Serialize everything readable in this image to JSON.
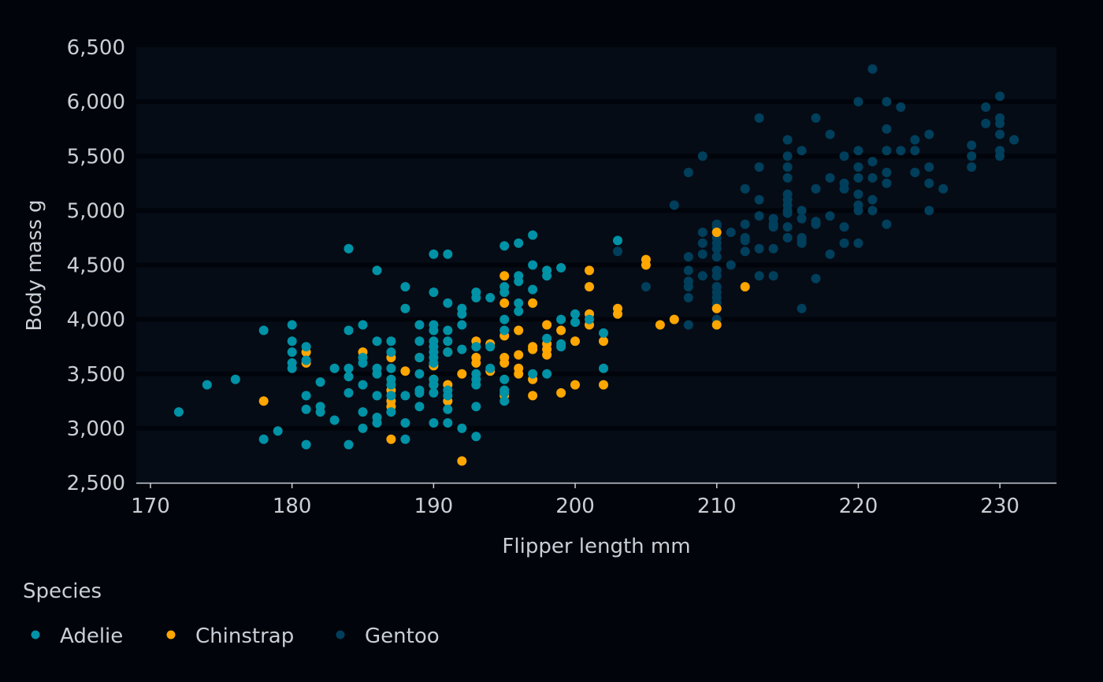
{
  "chart_data": {
    "type": "scatter",
    "title": "",
    "xlabel": "Flipper length mm",
    "ylabel": "Body mass g",
    "xlim": [
      169,
      234
    ],
    "ylim": [
      2500,
      6500
    ],
    "x_ticks": [
      170,
      180,
      190,
      200,
      210,
      220,
      230
    ],
    "y_ticks": [
      2500,
      3000,
      3500,
      4000,
      4500,
      5000,
      5500,
      6000,
      6500
    ],
    "x_tick_labels": [
      "170",
      "180",
      "190",
      "200",
      "210",
      "220",
      "230"
    ],
    "y_tick_labels": [
      "2,500",
      "3,000",
      "3,500",
      "4,000",
      "4,500",
      "5,000",
      "5,500",
      "6,000",
      "6,500"
    ],
    "grid": "horizontal",
    "legend": {
      "title": "Species",
      "position": "bottom-left"
    },
    "colors": {
      "background": "#01040a",
      "panel": "#050c16",
      "grid": "#01040a",
      "axis_line": "#c9cfd6",
      "text": "#c9cfd6"
    },
    "series": [
      {
        "name": "Adelie",
        "color": "#0092a6",
        "points": [
          [
            172,
            3150
          ],
          [
            174,
            3400
          ],
          [
            176,
            3450
          ],
          [
            178,
            3900
          ],
          [
            178,
            2900
          ],
          [
            179,
            2975
          ],
          [
            180,
            3950
          ],
          [
            180,
            3800
          ],
          [
            180,
            3700
          ],
          [
            180,
            3600
          ],
          [
            180,
            3550
          ],
          [
            181,
            3750
          ],
          [
            181,
            3625
          ],
          [
            181,
            3300
          ],
          [
            181,
            3175
          ],
          [
            181,
            2850
          ],
          [
            182,
            3200
          ],
          [
            182,
            3150
          ],
          [
            182,
            3425
          ],
          [
            183,
            3550
          ],
          [
            183,
            3075
          ],
          [
            184,
            4650
          ],
          [
            184,
            3900
          ],
          [
            184,
            3550
          ],
          [
            184,
            3475
          ],
          [
            184,
            3325
          ],
          [
            184,
            2850
          ],
          [
            185,
            3950
          ],
          [
            185,
            3650
          ],
          [
            185,
            3600
          ],
          [
            185,
            3400
          ],
          [
            185,
            3150
          ],
          [
            185,
            3000
          ],
          [
            186,
            4450
          ],
          [
            186,
            3800
          ],
          [
            186,
            3550
          ],
          [
            186,
            3500
          ],
          [
            186,
            3300
          ],
          [
            186,
            3100
          ],
          [
            186,
            3050
          ],
          [
            187,
            3800
          ],
          [
            187,
            3700
          ],
          [
            187,
            3550
          ],
          [
            187,
            3450
          ],
          [
            187,
            3400
          ],
          [
            187,
            3300
          ],
          [
            187,
            3150
          ],
          [
            188,
            4300
          ],
          [
            188,
            4100
          ],
          [
            188,
            3300
          ],
          [
            188,
            3050
          ],
          [
            188,
            2900
          ],
          [
            189,
            3950
          ],
          [
            189,
            3800
          ],
          [
            189,
            3650
          ],
          [
            189,
            3500
          ],
          [
            189,
            3350
          ],
          [
            189,
            3325
          ],
          [
            189,
            3200
          ],
          [
            190,
            4600
          ],
          [
            190,
            4250
          ],
          [
            190,
            3950
          ],
          [
            190,
            3900
          ],
          [
            190,
            3800
          ],
          [
            190,
            3750
          ],
          [
            190,
            3700
          ],
          [
            190,
            3650
          ],
          [
            190,
            3600
          ],
          [
            190,
            3450
          ],
          [
            190,
            3400
          ],
          [
            190,
            3325
          ],
          [
            190,
            3050
          ],
          [
            191,
            4600
          ],
          [
            191,
            4150
          ],
          [
            191,
            3900
          ],
          [
            191,
            3800
          ],
          [
            191,
            3700
          ],
          [
            191,
            3350
          ],
          [
            191,
            3300
          ],
          [
            191,
            3175
          ],
          [
            191,
            3050
          ],
          [
            192,
            4100
          ],
          [
            192,
            4050
          ],
          [
            192,
            3950
          ],
          [
            192,
            3725
          ],
          [
            192,
            3000
          ],
          [
            193,
            4250
          ],
          [
            193,
            4200
          ],
          [
            193,
            3750
          ],
          [
            193,
            3500
          ],
          [
            193,
            3450
          ],
          [
            193,
            3400
          ],
          [
            193,
            3200
          ],
          [
            193,
            2925
          ],
          [
            194,
            4200
          ],
          [
            194,
            3750
          ],
          [
            194,
            3550
          ],
          [
            195,
            4675
          ],
          [
            195,
            4300
          ],
          [
            195,
            4250
          ],
          [
            195,
            4000
          ],
          [
            195,
            3900
          ],
          [
            195,
            3450
          ],
          [
            195,
            3350
          ],
          [
            195,
            3325
          ],
          [
            195,
            3250
          ],
          [
            196,
            4700
          ],
          [
            196,
            4400
          ],
          [
            196,
            4350
          ],
          [
            196,
            4150
          ],
          [
            196,
            4075
          ],
          [
            197,
            4775
          ],
          [
            197,
            4500
          ],
          [
            197,
            4275
          ],
          [
            197,
            3500
          ],
          [
            198,
            4450
          ],
          [
            198,
            4400
          ],
          [
            198,
            3825
          ],
          [
            198,
            3500
          ],
          [
            199,
            4475
          ],
          [
            199,
            4000
          ],
          [
            199,
            3775
          ],
          [
            199,
            3750
          ],
          [
            200,
            4050
          ],
          [
            200,
            3975
          ],
          [
            201,
            4000
          ],
          [
            202,
            3875
          ],
          [
            202,
            3550
          ],
          [
            203,
            4725
          ]
        ]
      },
      {
        "name": "Chinstrap",
        "color": "#ffa600",
        "points": [
          [
            178,
            3250
          ],
          [
            181,
            3700
          ],
          [
            181,
            3600
          ],
          [
            185,
            3700
          ],
          [
            187,
            3650
          ],
          [
            187,
            3350
          ],
          [
            187,
            3250
          ],
          [
            187,
            3200
          ],
          [
            187,
            2900
          ],
          [
            188,
            3525
          ],
          [
            189,
            3650
          ],
          [
            190,
            3575
          ],
          [
            190,
            3450
          ],
          [
            190,
            3400
          ],
          [
            191,
            3700
          ],
          [
            191,
            3400
          ],
          [
            191,
            3250
          ],
          [
            192,
            3500
          ],
          [
            192,
            2700
          ],
          [
            193,
            3800
          ],
          [
            193,
            3650
          ],
          [
            193,
            3600
          ],
          [
            194,
            3775
          ],
          [
            194,
            3525
          ],
          [
            195,
            4400
          ],
          [
            195,
            4150
          ],
          [
            195,
            3850
          ],
          [
            195,
            3650
          ],
          [
            195,
            3600
          ],
          [
            195,
            3300
          ],
          [
            196,
            3900
          ],
          [
            196,
            3675
          ],
          [
            196,
            3550
          ],
          [
            196,
            3500
          ],
          [
            197,
            4150
          ],
          [
            197,
            3750
          ],
          [
            197,
            3725
          ],
          [
            197,
            3450
          ],
          [
            197,
            3300
          ],
          [
            198,
            3950
          ],
          [
            198,
            3775
          ],
          [
            198,
            3725
          ],
          [
            198,
            3675
          ],
          [
            199,
            3900
          ],
          [
            199,
            3325
          ],
          [
            200,
            3800
          ],
          [
            200,
            3400
          ],
          [
            201,
            4450
          ],
          [
            201,
            4300
          ],
          [
            201,
            4050
          ],
          [
            201,
            3950
          ],
          [
            202,
            3800
          ],
          [
            202,
            3400
          ],
          [
            203,
            4100
          ],
          [
            203,
            4050
          ],
          [
            205,
            4550
          ],
          [
            205,
            4500
          ],
          [
            206,
            3950
          ],
          [
            207,
            4000
          ],
          [
            210,
            4800
          ],
          [
            210,
            4100
          ],
          [
            210,
            3950
          ],
          [
            212,
            4300
          ]
        ]
      },
      {
        "name": "Gentoo",
        "color": "#003f5c",
        "points": [
          [
            203,
            4625
          ],
          [
            205,
            4300
          ],
          [
            207,
            5050
          ],
          [
            208,
            5350
          ],
          [
            208,
            4575
          ],
          [
            208,
            4450
          ],
          [
            208,
            4350
          ],
          [
            208,
            4300
          ],
          [
            208,
            4200
          ],
          [
            208,
            3950
          ],
          [
            209,
            5500
          ],
          [
            209,
            4800
          ],
          [
            209,
            4700
          ],
          [
            209,
            4600
          ],
          [
            209,
            4400
          ],
          [
            210,
            4875
          ],
          [
            210,
            4850
          ],
          [
            210,
            4750
          ],
          [
            210,
            4700
          ],
          [
            210,
            4650
          ],
          [
            210,
            4575
          ],
          [
            210,
            4450
          ],
          [
            210,
            4400
          ],
          [
            210,
            4300
          ],
          [
            210,
            4250
          ],
          [
            210,
            4200
          ],
          [
            210,
            4150
          ],
          [
            210,
            4000
          ],
          [
            211,
            4800
          ],
          [
            211,
            4500
          ],
          [
            212,
            5200
          ],
          [
            212,
            4875
          ],
          [
            212,
            4750
          ],
          [
            212,
            4725
          ],
          [
            212,
            4625
          ],
          [
            213,
            5850
          ],
          [
            213,
            5400
          ],
          [
            213,
            5100
          ],
          [
            213,
            4950
          ],
          [
            213,
            4650
          ],
          [
            213,
            4400
          ],
          [
            214,
            4925
          ],
          [
            214,
            4875
          ],
          [
            214,
            4850
          ],
          [
            214,
            4650
          ],
          [
            214,
            4400
          ],
          [
            215,
            5650
          ],
          [
            215,
            5500
          ],
          [
            215,
            5400
          ],
          [
            215,
            5300
          ],
          [
            215,
            5150
          ],
          [
            215,
            5100
          ],
          [
            215,
            5050
          ],
          [
            215,
            5000
          ],
          [
            215,
            4975
          ],
          [
            215,
            4850
          ],
          [
            215,
            4750
          ],
          [
            216,
            5550
          ],
          [
            216,
            5000
          ],
          [
            216,
            4925
          ],
          [
            216,
            4750
          ],
          [
            216,
            4725
          ],
          [
            216,
            4700
          ],
          [
            216,
            4100
          ],
          [
            217,
            5850
          ],
          [
            217,
            5200
          ],
          [
            217,
            4900
          ],
          [
            217,
            4875
          ],
          [
            217,
            4375
          ],
          [
            218,
            5700
          ],
          [
            218,
            5300
          ],
          [
            218,
            4950
          ],
          [
            218,
            4600
          ],
          [
            219,
            5500
          ],
          [
            219,
            5250
          ],
          [
            219,
            5200
          ],
          [
            219,
            4850
          ],
          [
            219,
            4700
          ],
          [
            220,
            6000
          ],
          [
            220,
            5550
          ],
          [
            220,
            5400
          ],
          [
            220,
            5300
          ],
          [
            220,
            5150
          ],
          [
            220,
            5050
          ],
          [
            220,
            5000
          ],
          [
            220,
            4700
          ],
          [
            221,
            6300
          ],
          [
            221,
            5450
          ],
          [
            221,
            5300
          ],
          [
            221,
            5100
          ],
          [
            221,
            5000
          ],
          [
            222,
            6000
          ],
          [
            222,
            5750
          ],
          [
            222,
            5550
          ],
          [
            222,
            5350
          ],
          [
            222,
            5250
          ],
          [
            222,
            4875
          ],
          [
            223,
            5950
          ],
          [
            223,
            5550
          ],
          [
            224,
            5650
          ],
          [
            224,
            5550
          ],
          [
            224,
            5350
          ],
          [
            225,
            5700
          ],
          [
            225,
            5400
          ],
          [
            225,
            5250
          ],
          [
            225,
            5000
          ],
          [
            226,
            5200
          ],
          [
            228,
            5600
          ],
          [
            228,
            5500
          ],
          [
            228,
            5400
          ],
          [
            229,
            5950
          ],
          [
            229,
            5800
          ],
          [
            230,
            6050
          ],
          [
            230,
            5850
          ],
          [
            230,
            5800
          ],
          [
            230,
            5700
          ],
          [
            230,
            5550
          ],
          [
            230,
            5500
          ],
          [
            231,
            5650
          ]
        ]
      }
    ]
  }
}
